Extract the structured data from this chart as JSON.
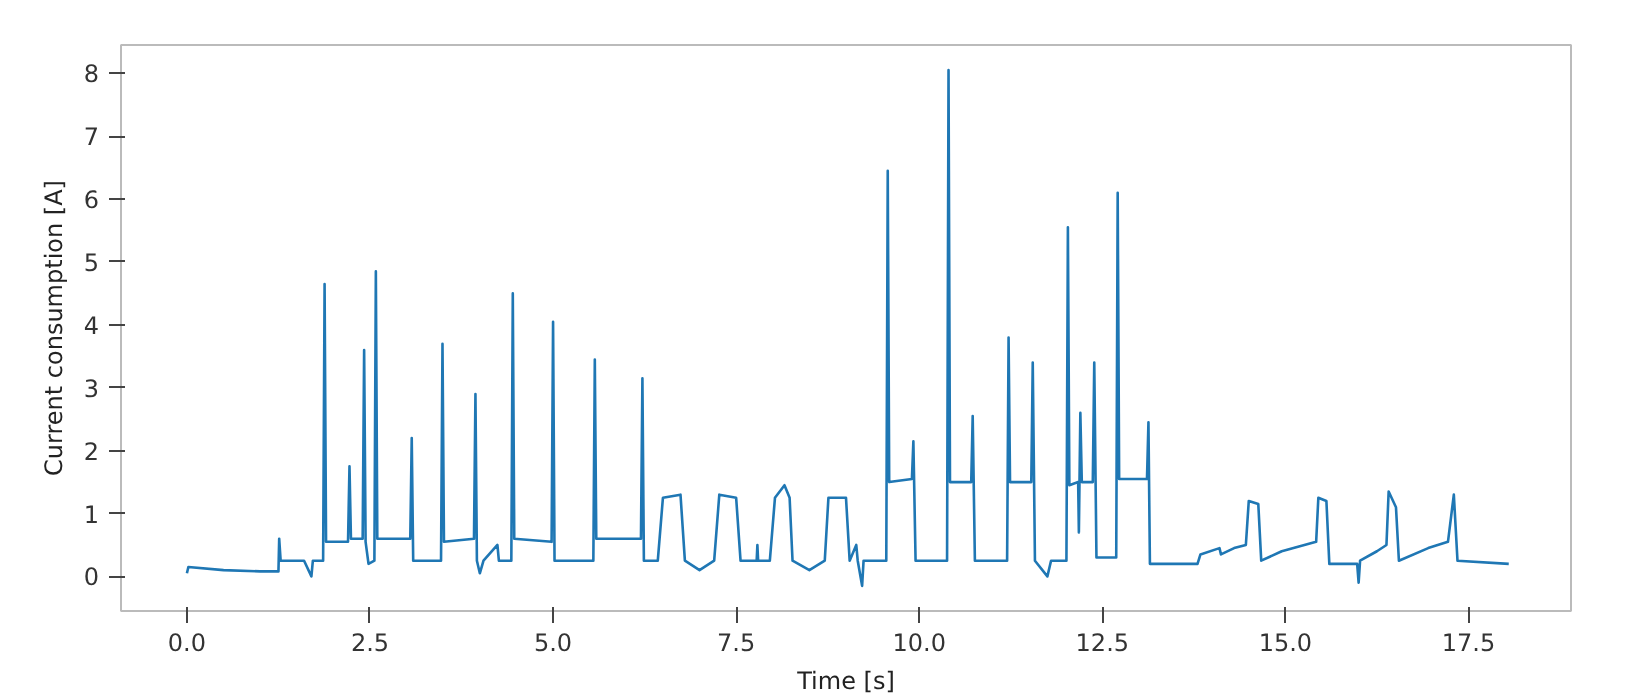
{
  "chart_data": {
    "type": "line",
    "xlabel": "Time [s]",
    "ylabel": "Current consumption [A]",
    "xlim": [
      -0.9,
      18.9
    ],
    "ylim": [
      -0.55,
      8.45
    ],
    "xticks": [
      {
        "value": 0,
        "label": "0.0"
      },
      {
        "value": 2.5,
        "label": "2.5"
      },
      {
        "value": 5,
        "label": "5.0"
      },
      {
        "value": 7.5,
        "label": "7.5"
      },
      {
        "value": 10,
        "label": "10.0"
      },
      {
        "value": 12.5,
        "label": "12.5"
      },
      {
        "value": 15,
        "label": "15.0"
      },
      {
        "value": 17.5,
        "label": "17.5"
      }
    ],
    "yticks": [
      0,
      1,
      2,
      3,
      4,
      5,
      6,
      7,
      8
    ],
    "line_style": "solid",
    "series": [
      {
        "color": "#1f77b4",
        "x": [
          0,
          0.02,
          0.5,
          1.0,
          1.25,
          1.26,
          1.28,
          1.6,
          1.7,
          1.72,
          1.86,
          1.88,
          1.9,
          2.2,
          2.22,
          2.24,
          2.4,
          2.42,
          2.44,
          2.48,
          2.56,
          2.58,
          2.6,
          3.05,
          3.07,
          3.09,
          3.47,
          3.49,
          3.51,
          3.92,
          3.94,
          3.96,
          4.0,
          4.05,
          4.24,
          4.26,
          4.43,
          4.45,
          4.47,
          4.98,
          5.0,
          5.02,
          5.55,
          5.57,
          5.59,
          6.2,
          6.22,
          6.24,
          6.43,
          6.5,
          6.74,
          6.8,
          7.0,
          7.2,
          7.27,
          7.5,
          7.56,
          7.78,
          7.79,
          7.8,
          7.96,
          8.03,
          8.16,
          8.23,
          8.27,
          8.5,
          8.71,
          8.76,
          9.0,
          9.05,
          9.14,
          9.16,
          9.22,
          9.24,
          9.55,
          9.57,
          9.59,
          9.9,
          9.92,
          9.95,
          10.38,
          10.4,
          10.42,
          10.71,
          10.73,
          10.76,
          11.2,
          11.22,
          11.24,
          11.53,
          11.55,
          11.58,
          11.75,
          11.8,
          12.01,
          12.03,
          12.05,
          12.17,
          12.18,
          12.2,
          12.22,
          12.37,
          12.39,
          12.42,
          12.69,
          12.71,
          12.73,
          13.11,
          13.13,
          13.15,
          13.8,
          13.84,
          14.1,
          14.12,
          14.3,
          14.46,
          14.5,
          14.63,
          14.67,
          14.95,
          15.42,
          15.45,
          15.56,
          15.6,
          15.98,
          16.0,
          16.02,
          16.25,
          16.38,
          16.41,
          16.51,
          16.55,
          16.95,
          17.22,
          17.3,
          17.35,
          18.05
        ],
        "values": [
          0.05,
          0.15,
          0.1,
          0.08,
          0.08,
          0.6,
          0.25,
          0.25,
          0.0,
          0.25,
          0.25,
          4.65,
          0.55,
          0.55,
          1.75,
          0.6,
          0.6,
          3.6,
          0.55,
          0.2,
          0.25,
          4.85,
          0.6,
          0.6,
          2.2,
          0.25,
          0.25,
          3.7,
          0.55,
          0.6,
          2.9,
          0.25,
          0.05,
          0.25,
          0.5,
          0.25,
          0.25,
          4.5,
          0.6,
          0.55,
          4.05,
          0.25,
          0.25,
          3.45,
          0.6,
          0.6,
          3.15,
          0.25,
          0.25,
          1.25,
          1.3,
          0.25,
          0.1,
          0.25,
          1.3,
          1.25,
          0.25,
          0.25,
          0.5,
          0.25,
          0.25,
          1.25,
          1.45,
          1.25,
          0.25,
          0.1,
          0.25,
          1.25,
          1.25,
          0.25,
          0.5,
          0.25,
          -0.15,
          0.25,
          0.25,
          6.45,
          1.5,
          1.55,
          2.15,
          0.25,
          0.25,
          8.05,
          1.5,
          1.5,
          2.55,
          0.25,
          0.25,
          3.8,
          1.5,
          1.5,
          3.4,
          0.25,
          0.0,
          0.25,
          0.25,
          5.55,
          1.45,
          1.5,
          0.7,
          2.6,
          1.5,
          1.5,
          3.4,
          0.3,
          0.3,
          6.1,
          1.55,
          1.55,
          2.45,
          0.2,
          0.2,
          0.35,
          0.45,
          0.35,
          0.45,
          0.5,
          1.2,
          1.15,
          0.25,
          0.4,
          0.55,
          1.25,
          1.2,
          0.2,
          0.2,
          -0.1,
          0.25,
          0.4,
          0.5,
          1.35,
          1.1,
          0.25,
          0.45,
          0.55,
          1.3,
          0.25,
          0.2
        ]
      }
    ]
  }
}
